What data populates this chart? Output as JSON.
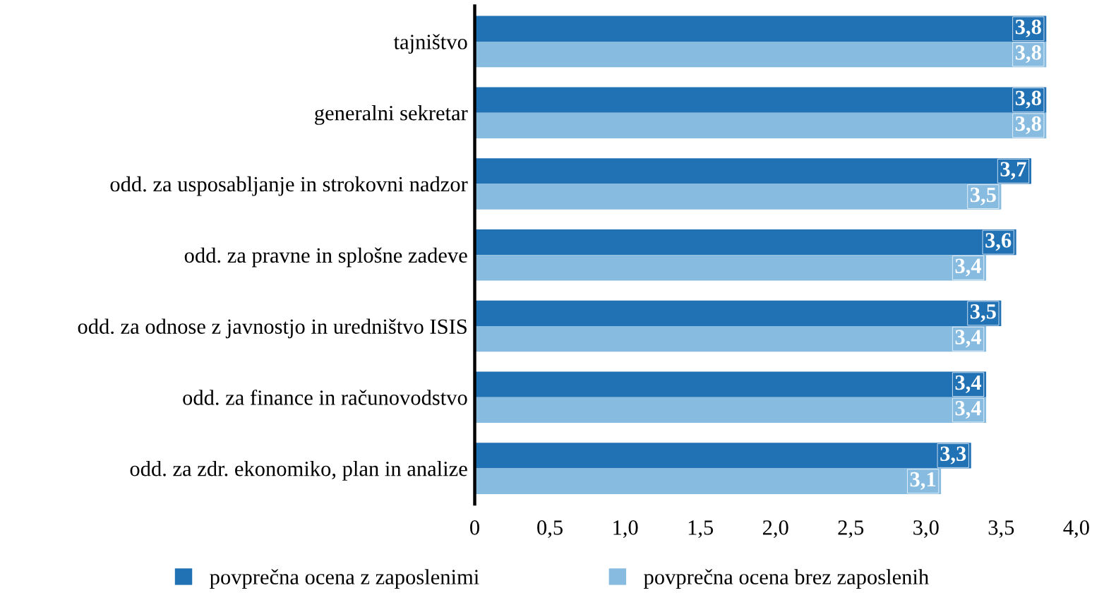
{
  "chart_data": {
    "type": "bar",
    "orientation": "horizontal",
    "categories": [
      "tajništvo",
      "generalni sekretar",
      "odd. za usposabljanje in strokovni nadzor",
      "odd. za pravne in splošne zadeve",
      "odd. za odnose z javnostjo in uredništvo ISIS",
      "odd. za finance in računovodstvo",
      "odd. za zdr. ekonomiko, plan in analize"
    ],
    "series": [
      {
        "name": "povprečna ocena z zaposlenimi",
        "color": "#2171b5",
        "values": [
          3.8,
          3.8,
          3.7,
          3.6,
          3.5,
          3.4,
          3.3
        ],
        "value_labels": [
          "3,8",
          "3,8",
          "3,7",
          "3,6",
          "3,5",
          "3,4",
          "3,3"
        ]
      },
      {
        "name": "povprečna ocena brez zaposlenih",
        "color": "#87bbe0",
        "values": [
          3.8,
          3.8,
          3.5,
          3.4,
          3.4,
          3.4,
          3.1
        ],
        "value_labels": [
          "3,8",
          "3,8",
          "3,5",
          "3,4",
          "3,4",
          "3,4",
          "3,1"
        ]
      }
    ],
    "xlim": [
      0,
      4.0
    ],
    "xticks": [
      0,
      {
        "value": 0.5,
        "label": "0,5"
      },
      {
        "value": 1.0,
        "label": "1,0"
      },
      {
        "value": 1.5,
        "label": "1,5"
      },
      {
        "value": 2.0,
        "label": "2,0"
      },
      {
        "value": 2.5,
        "label": "2,5"
      },
      {
        "value": 3.0,
        "label": "3,0"
      },
      {
        "value": 3.5,
        "label": "3,5"
      },
      {
        "value": 4.0,
        "label": "4,0"
      }
    ],
    "legend": "bottom",
    "grid": false
  }
}
